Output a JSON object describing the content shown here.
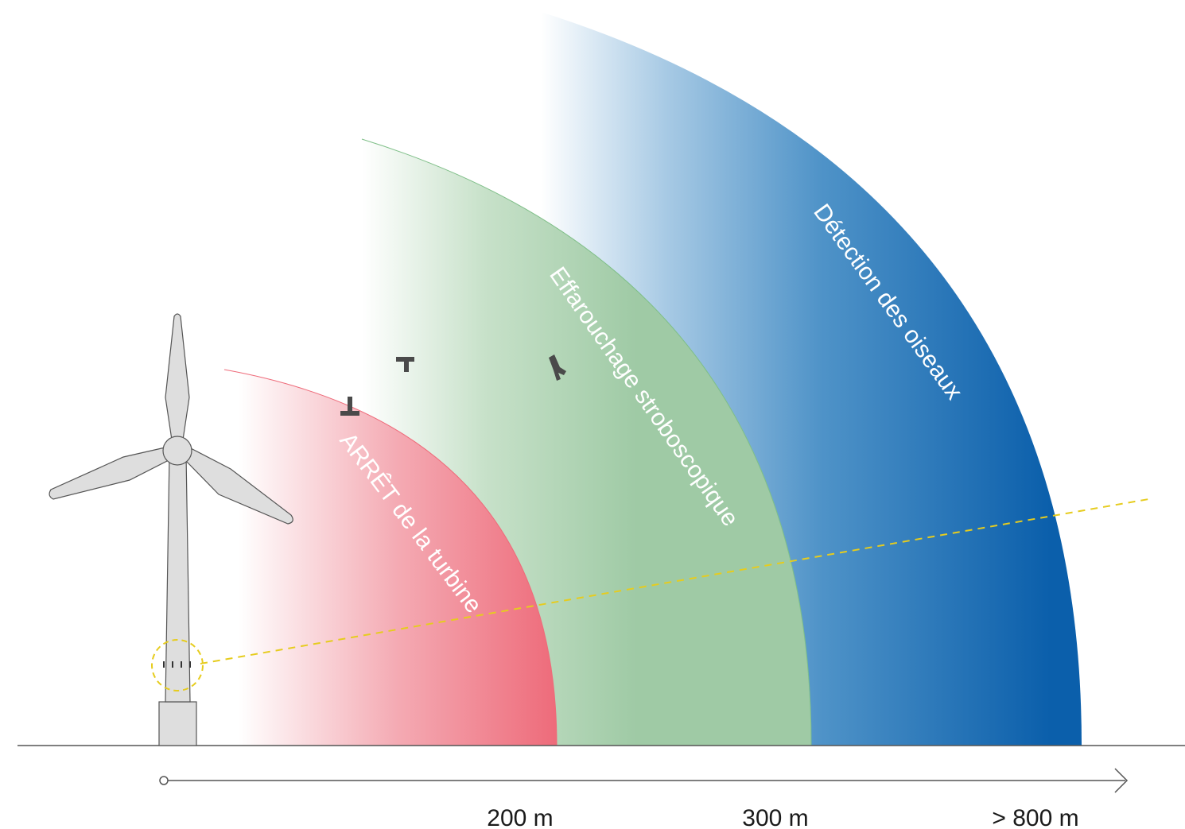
{
  "zones": {
    "detection": {
      "label": "Détection des oiseaux",
      "color_dark": "#0b5fab",
      "color_light": "#ffffff"
    },
    "strobe": {
      "label": "Effarouchage stroboscopique",
      "color_dark": "#9fcaa5",
      "color_light": "#ffffff"
    },
    "stop": {
      "label": "ARRÊT de la turbine",
      "color_dark": "#ee6b7a",
      "color_light": "#ffffff"
    }
  },
  "distances": {
    "d200": "200 m",
    "d300": "300 m",
    "d800": "> 800 m"
  },
  "colors": {
    "turbine_fill": "#dedede",
    "turbine_stroke": "#555555",
    "sensor_line": "#e6cc1e",
    "bird": "#4a4a4a",
    "ground": "#555555"
  },
  "icons": {
    "turbine": "wind-turbine-icon",
    "bird": "bird-icon",
    "sensor": "camera-sensor-icon",
    "axis_arrow": "arrow-right-icon"
  }
}
